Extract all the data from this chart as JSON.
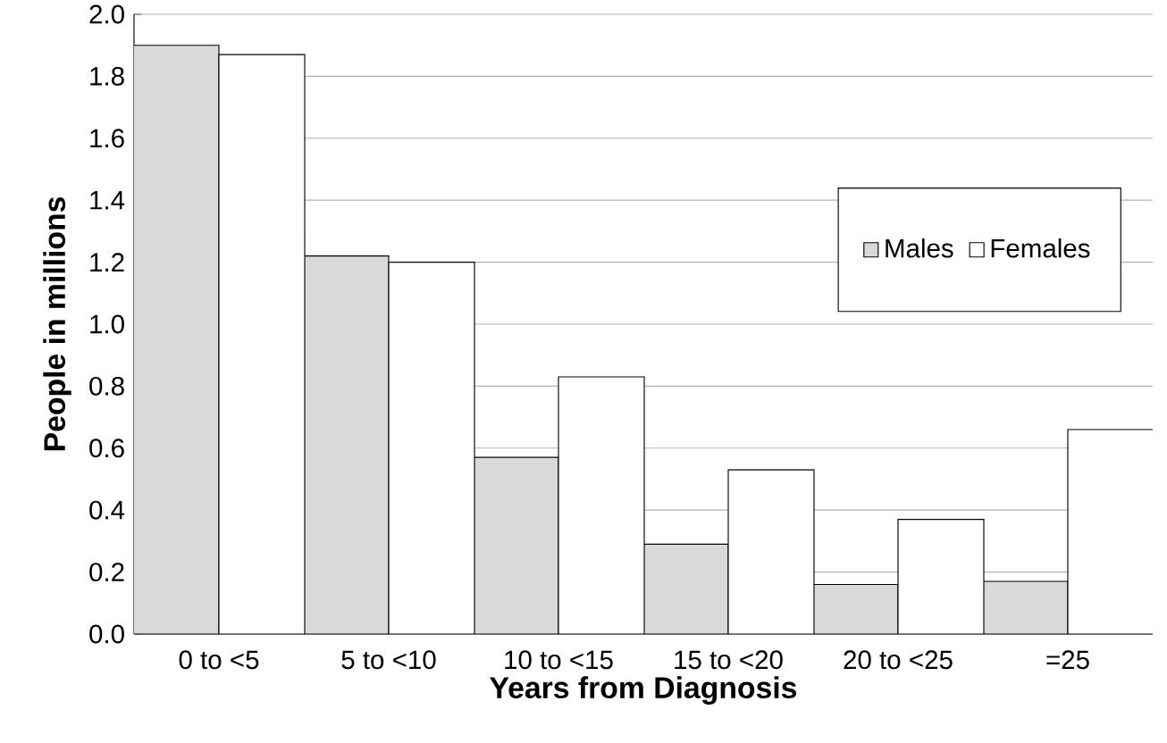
{
  "chart_data": {
    "type": "bar",
    "xlabel": "Years from Diagnosis",
    "ylabel": "People in millions",
    "categories": [
      "0 to <5",
      "5 to <10",
      "10 to <15",
      "15 to <20",
      "20 to <25",
      "=25"
    ],
    "series": [
      {
        "name": "Males",
        "color": "#d9d9d9",
        "values": [
          1.9,
          1.22,
          0.57,
          0.29,
          0.16,
          0.17
        ]
      },
      {
        "name": "Females",
        "color": "#ffffff",
        "values": [
          1.87,
          1.2,
          0.83,
          0.53,
          0.37,
          0.66
        ]
      }
    ],
    "ylim": [
      0,
      2.0
    ],
    "yticks": [
      {
        "value": 0,
        "label": "0.0"
      },
      {
        "value": 0.2,
        "label": "0.2"
      },
      {
        "value": 0.4,
        "label": "0.4"
      },
      {
        "value": 0.6,
        "label": "0.6"
      },
      {
        "value": 0.8,
        "label": "0.8"
      },
      {
        "value": 1.0,
        "label": "1.0"
      },
      {
        "value": 1.2,
        "label": "1.2"
      },
      {
        "value": 1.4,
        "label": "1.4"
      },
      {
        "value": 1.6,
        "label": "1.6"
      },
      {
        "value": 1.8,
        "label": "1.8"
      },
      {
        "value": 2.0,
        "label": "2.0"
      }
    ],
    "grid": "y",
    "legend": "right"
  }
}
